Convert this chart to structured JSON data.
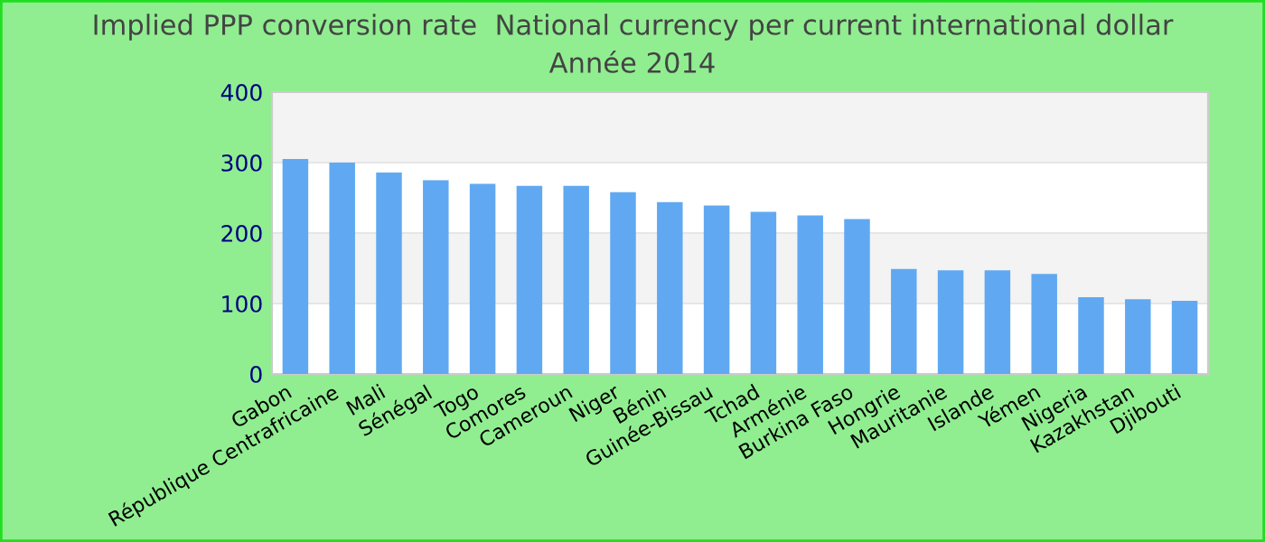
{
  "chart_data": {
    "type": "bar",
    "title": "Implied PPP conversion rate  National currency per current international dollar",
    "subtitle": "Année 2014",
    "categories": [
      "Gabon",
      "République Centrafricaine",
      "Mali",
      "Sénégal",
      "Togo",
      "Comores",
      "Cameroun",
      "Niger",
      "Bénin",
      "Guinée-Bissau",
      "Tchad",
      "Arménie",
      "Burkina Faso",
      "Hongrie",
      "Mauritanie",
      "Islande",
      "Yémen",
      "Nigeria",
      "Kazakhstan",
      "Djibouti"
    ],
    "values": [
      305,
      300,
      286,
      275,
      270,
      267,
      267,
      258,
      244,
      239,
      230,
      225,
      220,
      149,
      147,
      147,
      142,
      109,
      106,
      104
    ],
    "color": "#60a9f2",
    "ylim": [
      0,
      400
    ],
    "yticks": [
      0,
      100,
      200,
      300,
      400
    ],
    "grid": "y"
  }
}
